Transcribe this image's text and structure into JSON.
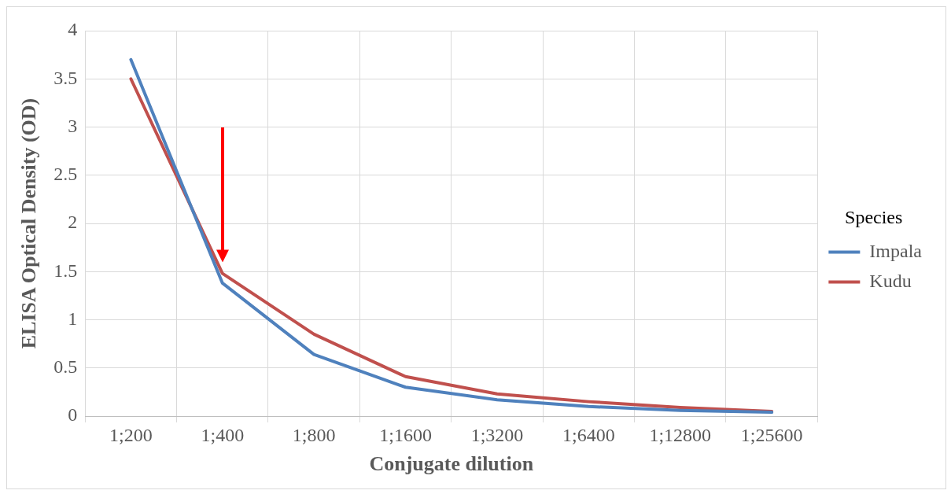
{
  "chart_data": {
    "type": "line",
    "xlabel": "Conjugate dilution",
    "ylabel": "ELISA Optical Density (OD)",
    "legend_title": "Species",
    "categories": [
      "1;200",
      "1;400",
      "1;800",
      "1;1600",
      "1;3200",
      "1;6400",
      "1;12800",
      "1;25600"
    ],
    "series": [
      {
        "name": "Impala",
        "color": "#4f81bd",
        "values": [
          3.7,
          1.38,
          0.64,
          0.3,
          0.17,
          0.1,
          0.06,
          0.04
        ]
      },
      {
        "name": "Kudu",
        "color": "#c0504d",
        "values": [
          3.5,
          1.48,
          0.85,
          0.41,
          0.23,
          0.15,
          0.09,
          0.05
        ]
      }
    ],
    "ylim": [
      0,
      4
    ],
    "yticks": [
      0,
      0.5,
      1,
      1.5,
      2,
      2.5,
      3,
      3.5,
      4
    ],
    "grid": true,
    "legend": "right",
    "marker": "none",
    "line_style": "solid"
  }
}
